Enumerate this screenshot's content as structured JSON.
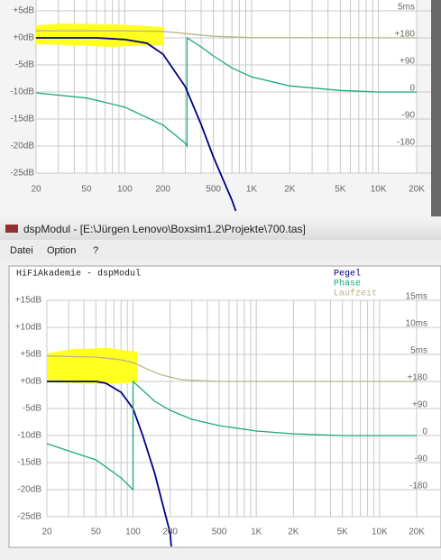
{
  "window": {
    "title": "dspModul - [E:\\Jürgen Lenovo\\Boxsim1.2\\Projekte\\700.tas]",
    "menu": [
      "Datei",
      "Option",
      "?"
    ]
  },
  "chart_data": [
    {
      "type": "line",
      "xscale": "log",
      "xlim": [
        20,
        20000
      ],
      "xticks": [
        20,
        50,
        100,
        200,
        500,
        {
          "value": 1000,
          "label": "1K"
        },
        {
          "value": 2000,
          "label": "2K"
        },
        {
          "value": 5000,
          "label": "5K"
        },
        {
          "value": 10000,
          "label": "10K"
        },
        {
          "value": 20000,
          "label": "20K"
        }
      ],
      "xgrid": [
        20,
        30,
        40,
        50,
        60,
        70,
        80,
        90,
        100,
        200,
        300,
        400,
        500,
        600,
        700,
        800,
        900,
        1000,
        2000,
        3000,
        4000,
        5000,
        6000,
        7000,
        8000,
        9000,
        10000,
        20000
      ],
      "ylim": [
        -25,
        7
      ],
      "yticks": [
        {
          "value": 5,
          "label": "+5dB"
        },
        {
          "value": 0,
          "label": "+0dB"
        },
        {
          "value": -5,
          "label": "-5dB"
        },
        {
          "value": -10,
          "label": "-10dB"
        },
        {
          "value": -15,
          "label": "-15dB"
        },
        {
          "value": -20,
          "label": "-20dB"
        },
        {
          "value": -25,
          "label": "-25dB"
        }
      ],
      "y2lim": [
        -270,
        306
      ],
      "y2ticks": [
        {
          "value": 180,
          "label": "+180"
        },
        {
          "value": 90,
          "label": "+90"
        },
        0,
        -90,
        -180
      ],
      "y3lim": [
        -25,
        7
      ],
      "y3ticks": [
        {
          "value": 5,
          "label": "5ms"
        }
      ],
      "grid": true,
      "series": [
        {
          "color": "#b8b48c",
          "axis": "y3",
          "x": [
            20,
            100,
            200,
            300,
            500,
            1000,
            20000
          ],
          "values": [
            1.3,
            1.3,
            1.2,
            0.8,
            0.3,
            0.05,
            0
          ]
        },
        {
          "color": "#1aaa78",
          "axis": "y2",
          "x": [
            20,
            50,
            100,
            200,
            300,
            310,
            310,
            400,
            500,
            700,
            1000,
            2000,
            5000,
            10000,
            20000
          ],
          "values": [
            -3,
            -20,
            -50,
            -110,
            -170,
            -180,
            180,
            150,
            120,
            80,
            50,
            20,
            5,
            0,
            0
          ]
        },
        {
          "color": "#000080",
          "x": [
            20,
            60,
            100,
            150,
            200,
            300,
            400,
            500,
            700,
            750
          ],
          "values": [
            0,
            0,
            -0.3,
            -1,
            -3,
            -9,
            -16,
            -22,
            -30,
            -32
          ]
        }
      ]
    },
    {
      "type": "line",
      "title": "HiFiAkademie - dspModul",
      "xscale": "log",
      "xlim": [
        20,
        20000
      ],
      "xticks": [
        20,
        50,
        100,
        200,
        500,
        {
          "value": 1000,
          "label": "1K"
        },
        {
          "value": 2000,
          "label": "2K"
        },
        {
          "value": 5000,
          "label": "5K"
        },
        {
          "value": 10000,
          "label": "10K"
        },
        {
          "value": 20000,
          "label": "20K"
        }
      ],
      "xgrid": [
        20,
        30,
        40,
        50,
        60,
        70,
        80,
        90,
        100,
        200,
        300,
        400,
        500,
        600,
        700,
        800,
        900,
        1000,
        2000,
        3000,
        4000,
        5000,
        6000,
        7000,
        8000,
        9000,
        10000,
        20000
      ],
      "ylim": [
        -25,
        15
      ],
      "yticks": [
        {
          "value": 15,
          "label": "+15dB"
        },
        {
          "value": 10,
          "label": "+10dB"
        },
        {
          "value": 5,
          "label": "+5dB"
        },
        {
          "value": 0,
          "label": "+0dB"
        },
        {
          "value": -5,
          "label": "-5dB"
        },
        {
          "value": -10,
          "label": "-10dB"
        },
        {
          "value": -15,
          "label": "-15dB"
        },
        {
          "value": -20,
          "label": "-20dB"
        },
        {
          "value": -25,
          "label": "-25dB"
        }
      ],
      "y2lim": [
        -270,
        450
      ],
      "y2ticks": [
        {
          "value": 180,
          "label": "+180"
        },
        {
          "value": 90,
          "label": "+90"
        },
        0,
        -90,
        -180
      ],
      "y3lim": [
        -25,
        15
      ],
      "y3ticks": [
        {
          "value": 15,
          "label": "15ms"
        },
        {
          "value": 10,
          "label": "10ms"
        },
        {
          "value": 5,
          "label": "5ms"
        }
      ],
      "grid": true,
      "series": [
        {
          "name": "Pegel",
          "color": "#000080",
          "x": [
            20,
            50,
            60,
            80,
            100,
            120,
            150,
            180,
            200,
            205
          ],
          "values": [
            0,
            0,
            -0.3,
            -2,
            -5,
            -10,
            -17,
            -24,
            -28,
            -31
          ]
        },
        {
          "name": "Phase",
          "color": "#1aaa78",
          "axis": "y2",
          "x": [
            20,
            50,
            80,
            100,
            100,
            150,
            200,
            300,
            500,
            1000,
            2000,
            5000,
            20000
          ],
          "values": [
            -27,
            -81,
            -141,
            -180,
            180,
            114,
            84,
            54,
            33,
            15,
            6,
            0,
            0
          ]
        },
        {
          "name": "Laufzeit",
          "color": "#b8b48c",
          "axis": "y3",
          "x": [
            20,
            50,
            80,
            100,
            130,
            170,
            250,
            500,
            20000
          ],
          "values": [
            4.7,
            4.5,
            4.0,
            3.5,
            2.3,
            1.2,
            0.3,
            0,
            0
          ]
        }
      ]
    }
  ]
}
